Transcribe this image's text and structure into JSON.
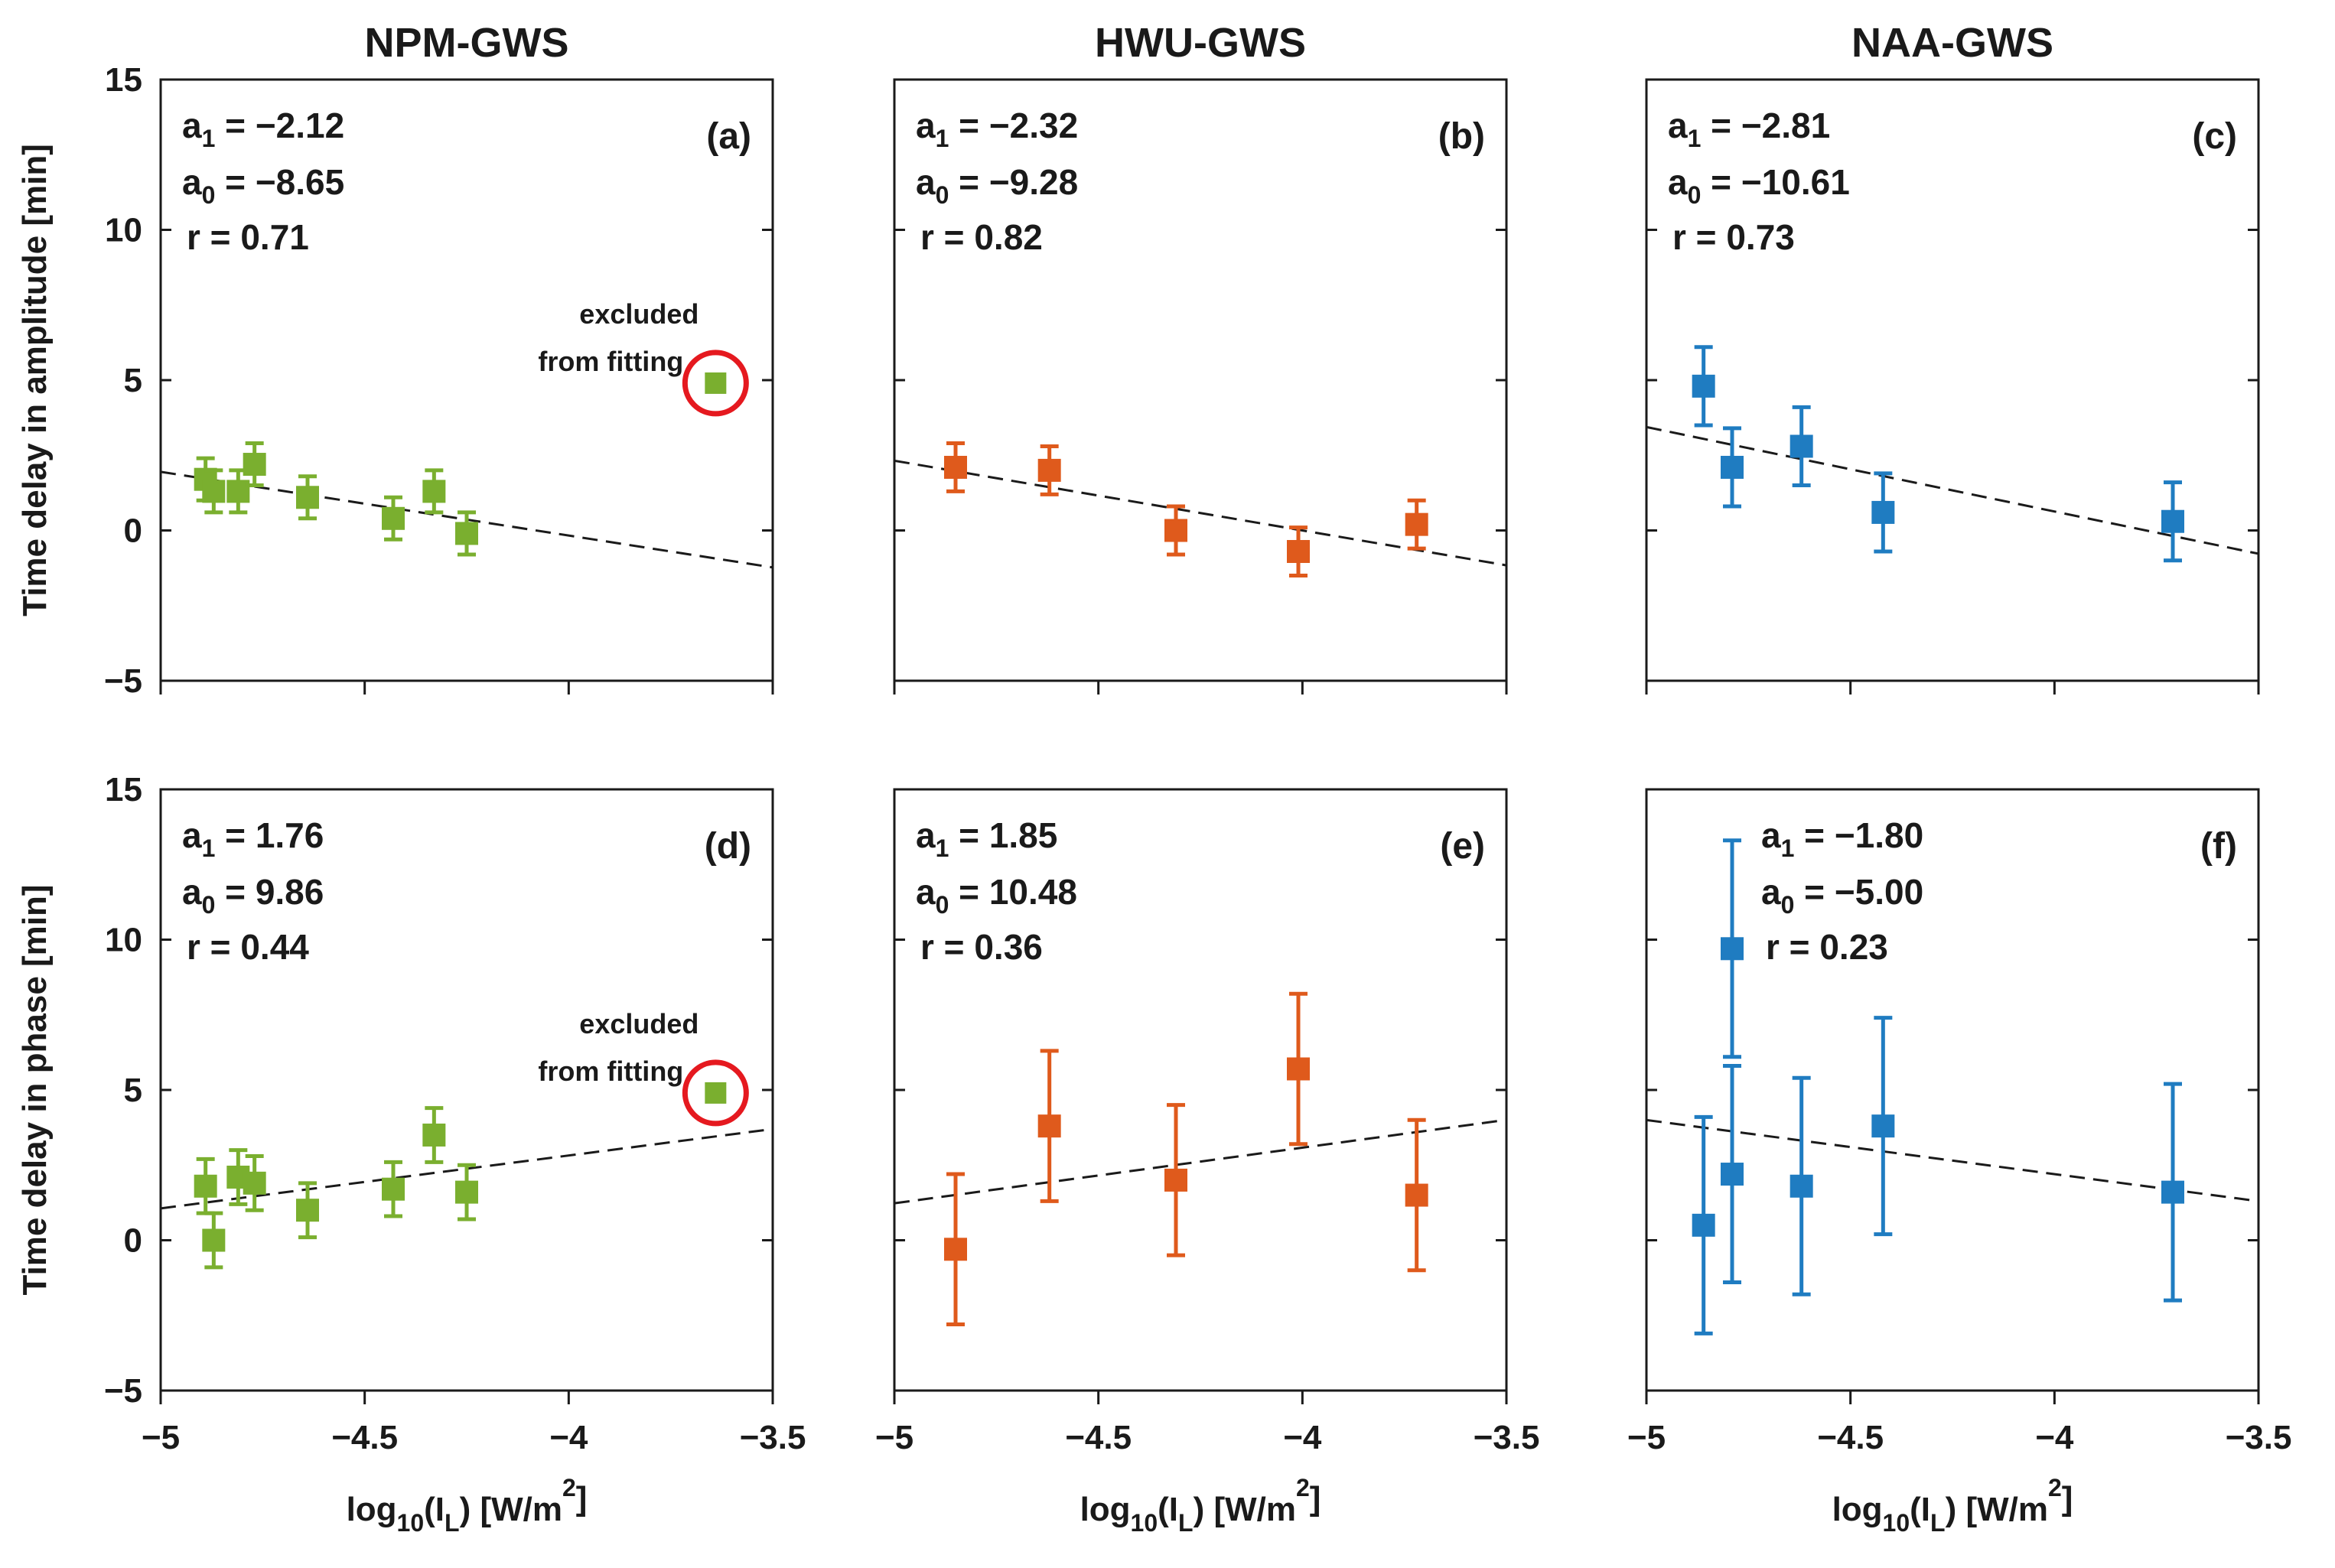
{
  "colors": {
    "NPM": "#7aaf2f",
    "HWU": "#df5a1c",
    "NAA": "#1f7cc1",
    "highlight": "#e5191f",
    "axis": "#1a1a1a"
  },
  "column_titles": [
    "NPM-GWS",
    "HWU-GWS",
    "NAA-GWS"
  ],
  "row_ylabels": [
    "Time delay in amplitude [min]",
    "Time delay in phase [min]"
  ],
  "xlabel": {
    "prefix": "log",
    "sub1": "10",
    "mid": "(I",
    "sub2": "L",
    "suffix": ") [W/m",
    "sup": "2",
    "end": "]"
  },
  "chart_data": [
    {
      "type": "scatter",
      "panel": "(a)",
      "station": "NPM-GWS",
      "row": 0,
      "col": 0,
      "title": "NPM-GWS",
      "ylabel": "Time delay in amplitude [min]",
      "xlim": [
        -5,
        -3.5
      ],
      "ylim": [
        -5,
        15
      ],
      "xticks": [
        -5,
        -4.5,
        -4,
        -3.5
      ],
      "xtick_labels": [
        "−5",
        "−4.5",
        "−4",
        "−3.5"
      ],
      "yticks": [
        -5,
        0,
        5,
        10,
        15
      ],
      "ytick_labels": [
        "−5",
        "0",
        "5",
        "10",
        "15"
      ],
      "show_yticklabels": true,
      "show_xticklabels": false,
      "stats": {
        "a1": "= −2.12",
        "a0": "= −8.65",
        "r": "r = 0.71"
      },
      "fit": {
        "a1": -2.12,
        "a0": -8.65
      },
      "points": [
        {
          "x": -4.89,
          "y": 1.7,
          "err": 0.7
        },
        {
          "x": -4.87,
          "y": 1.3,
          "err": 0.7
        },
        {
          "x": -4.81,
          "y": 1.3,
          "err": 0.7
        },
        {
          "x": -4.77,
          "y": 2.2,
          "err": 0.7
        },
        {
          "x": -4.64,
          "y": 1.1,
          "err": 0.7
        },
        {
          "x": -4.43,
          "y": 0.4,
          "err": 0.7
        },
        {
          "x": -4.33,
          "y": 1.3,
          "err": 0.7
        },
        {
          "x": -4.25,
          "y": -0.1,
          "err": 0.7
        }
      ],
      "excluded": {
        "x": -3.64,
        "y": 4.9,
        "label_line1": "excluded",
        "label_line2": "from fitting"
      }
    },
    {
      "type": "scatter",
      "panel": "(b)",
      "station": "HWU-GWS",
      "row": 0,
      "col": 1,
      "title": "HWU-GWS",
      "ylabel": "",
      "xlim": [
        -5,
        -3.5
      ],
      "ylim": [
        -5,
        15
      ],
      "xticks": [
        -5,
        -4.5,
        -4,
        -3.5
      ],
      "xtick_labels": [
        "−5",
        "−4.5",
        "−4",
        "−3.5"
      ],
      "yticks": [
        -5,
        0,
        5,
        10,
        15
      ],
      "ytick_labels": [
        "−5",
        "0",
        "5",
        "10",
        "15"
      ],
      "show_yticklabels": false,
      "show_xticklabels": false,
      "stats": {
        "a1": "= −2.32",
        "a0": "= −9.28",
        "r": "r = 0.82"
      },
      "fit": {
        "a1": -2.32,
        "a0": -9.28
      },
      "points": [
        {
          "x": -4.85,
          "y": 2.1,
          "err": 0.8
        },
        {
          "x": -4.62,
          "y": 2.0,
          "err": 0.8
        },
        {
          "x": -4.31,
          "y": 0.0,
          "err": 0.8
        },
        {
          "x": -4.01,
          "y": -0.7,
          "err": 0.8
        },
        {
          "x": -3.72,
          "y": 0.2,
          "err": 0.8
        }
      ]
    },
    {
      "type": "scatter",
      "panel": "(c)",
      "station": "NAA-GWS",
      "row": 0,
      "col": 2,
      "title": "NAA-GWS",
      "ylabel": "",
      "xlim": [
        -5,
        -3.5
      ],
      "ylim": [
        -5,
        15
      ],
      "xticks": [
        -5,
        -4.5,
        -4,
        -3.5
      ],
      "xtick_labels": [
        "−5",
        "−4.5",
        "−4",
        "−3.5"
      ],
      "yticks": [
        -5,
        0,
        5,
        10,
        15
      ],
      "ytick_labels": [
        "−5",
        "0",
        "5",
        "10",
        "15"
      ],
      "show_yticklabels": false,
      "show_xticklabels": false,
      "stats": {
        "a1": "= −2.81",
        "a0": "= −10.61",
        "r": "r = 0.73"
      },
      "fit": {
        "a1": -2.81,
        "a0": -10.61
      },
      "points": [
        {
          "x": -4.86,
          "y": 4.8,
          "err": 1.3
        },
        {
          "x": -4.79,
          "y": 2.1,
          "err": 1.3
        },
        {
          "x": -4.62,
          "y": 2.8,
          "err": 1.3
        },
        {
          "x": -4.42,
          "y": 0.6,
          "err": 1.3
        },
        {
          "x": -3.71,
          "y": 0.3,
          "err": 1.3
        }
      ]
    },
    {
      "type": "scatter",
      "panel": "(d)",
      "station": "NPM-GWS",
      "row": 1,
      "col": 0,
      "title": "",
      "ylabel": "Time delay in phase [min]",
      "xlim": [
        -5,
        -3.5
      ],
      "ylim": [
        -5,
        15
      ],
      "xticks": [
        -5,
        -4.5,
        -4,
        -3.5
      ],
      "xtick_labels": [
        "−5",
        "−4.5",
        "−4",
        "−3.5"
      ],
      "yticks": [
        -5,
        0,
        5,
        10,
        15
      ],
      "ytick_labels": [
        "−5",
        "0",
        "5",
        "10",
        "15"
      ],
      "show_yticklabels": true,
      "show_xticklabels": true,
      "stats": {
        "a1": "= 1.76",
        "a0": "= 9.86",
        "r": "r = 0.44"
      },
      "fit": {
        "a1": 1.76,
        "a0": 9.86
      },
      "points": [
        {
          "x": -4.89,
          "y": 1.8,
          "err": 0.9
        },
        {
          "x": -4.87,
          "y": 0.0,
          "err": 0.9
        },
        {
          "x": -4.81,
          "y": 2.1,
          "err": 0.9
        },
        {
          "x": -4.77,
          "y": 1.9,
          "err": 0.9
        },
        {
          "x": -4.64,
          "y": 1.0,
          "err": 0.9
        },
        {
          "x": -4.43,
          "y": 1.7,
          "err": 0.9
        },
        {
          "x": -4.33,
          "y": 3.5,
          "err": 0.9
        },
        {
          "x": -4.25,
          "y": 1.6,
          "err": 0.9
        }
      ],
      "excluded": {
        "x": -3.64,
        "y": 4.9,
        "label_line1": "excluded",
        "label_line2": "from fitting"
      }
    },
    {
      "type": "scatter",
      "panel": "(e)",
      "station": "HWU-GWS",
      "row": 1,
      "col": 1,
      "title": "",
      "ylabel": "",
      "xlim": [
        -5,
        -3.5
      ],
      "ylim": [
        -5,
        15
      ],
      "xticks": [
        -5,
        -4.5,
        -4,
        -3.5
      ],
      "xtick_labels": [
        "−5",
        "−4.5",
        "−4",
        "−3.5"
      ],
      "yticks": [
        -5,
        0,
        5,
        10,
        15
      ],
      "ytick_labels": [
        "−5",
        "0",
        "5",
        "10",
        "15"
      ],
      "show_yticklabels": false,
      "show_xticklabels": true,
      "stats": {
        "a1": "= 1.85",
        "a0": "= 10.48",
        "r": "r = 0.36"
      },
      "fit": {
        "a1": 1.85,
        "a0": 10.48
      },
      "points": [
        {
          "x": -4.85,
          "y": -0.3,
          "err": 2.5
        },
        {
          "x": -4.62,
          "y": 3.8,
          "err": 2.5
        },
        {
          "x": -4.31,
          "y": 2.0,
          "err": 2.5
        },
        {
          "x": -4.01,
          "y": 5.7,
          "err": 2.5
        },
        {
          "x": -3.72,
          "y": 1.5,
          "err": 2.5
        }
      ]
    },
    {
      "type": "scatter",
      "panel": "(f)",
      "station": "NAA-GWS",
      "row": 1,
      "col": 2,
      "title": "",
      "ylabel": "",
      "xlim": [
        -5,
        -3.5
      ],
      "ylim": [
        -5,
        15
      ],
      "xticks": [
        -5,
        -4.5,
        -4,
        -3.5
      ],
      "xtick_labels": [
        "−5",
        "−4.5",
        "−4",
        "−3.5"
      ],
      "yticks": [
        -5,
        0,
        5,
        10,
        15
      ],
      "ytick_labels": [
        "−5",
        "0",
        "5",
        "10",
        "15"
      ],
      "show_yticklabels": false,
      "show_xticklabels": true,
      "stats": {
        "a1": "= −1.80",
        "a0": "= −5.00",
        "r": "r = 0.23"
      },
      "fit": {
        "a1": -1.8,
        "a0": -5.0
      },
      "points": [
        {
          "x": -4.86,
          "y": 0.5,
          "err": 3.6
        },
        {
          "x": -4.79,
          "y": 9.7,
          "err": 3.6
        },
        {
          "x": -4.79,
          "y": 2.2,
          "err": 3.6
        },
        {
          "x": -4.62,
          "y": 1.8,
          "err": 3.6
        },
        {
          "x": -4.42,
          "y": 3.8,
          "err": 3.6
        },
        {
          "x": -3.71,
          "y": 1.6,
          "err": 3.6
        }
      ]
    }
  ]
}
